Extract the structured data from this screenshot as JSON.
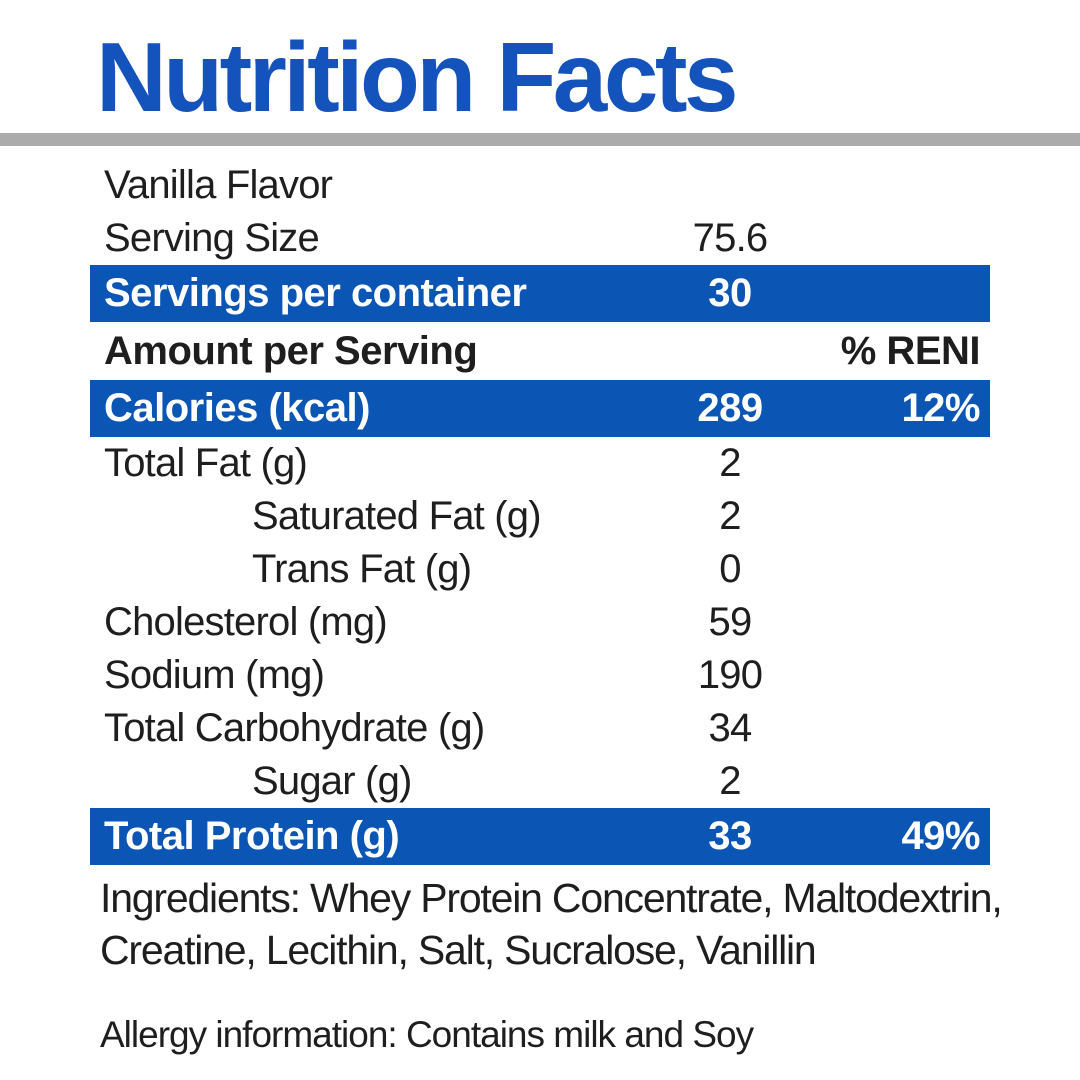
{
  "title": "Nutrition Facts",
  "colors": {
    "title_blue": "#1453BC",
    "bar_blue": "#0B55B4",
    "divider_gray": "#ABABAB",
    "text_dark": "#1E1E1E"
  },
  "table": {
    "percent_column_header": "% RENI",
    "rows": [
      {
        "label": "Vanilla Flavor",
        "value": "",
        "pct": "",
        "style": "plain"
      },
      {
        "label": "Serving Size",
        "value": "75.6",
        "pct": "",
        "style": "plain"
      },
      {
        "label": "Servings per container",
        "value": "30",
        "pct": "",
        "style": "highlight"
      },
      {
        "label": "Amount per Serving",
        "value": "",
        "pct": "% RENI",
        "style": "bold"
      },
      {
        "label": "Calories (kcal)",
        "value": "289",
        "pct": "12%",
        "style": "highlight"
      },
      {
        "label": "Total Fat (g)",
        "value": "2",
        "pct": "",
        "style": "plain"
      },
      {
        "label": "Saturated Fat (g)",
        "value": "2",
        "pct": "",
        "style": "indent"
      },
      {
        "label": "Trans Fat (g)",
        "value": "0",
        "pct": "",
        "style": "indent"
      },
      {
        "label": "Cholesterol (mg)",
        "value": "59",
        "pct": "",
        "style": "plain"
      },
      {
        "label": "Sodium (mg)",
        "value": "190",
        "pct": "",
        "style": "plain"
      },
      {
        "label": "Total Carbohydrate (g)",
        "value": "34",
        "pct": "",
        "style": "plain"
      },
      {
        "label": "Sugar (g)",
        "value": "2",
        "pct": "",
        "style": "indent"
      },
      {
        "label": "Total Protein (g)",
        "value": "33",
        "pct": "49%",
        "style": "highlight"
      }
    ]
  },
  "footnotes": {
    "ingredients_line1": "Ingredients: Whey Protein Concentrate, Maltodextrin,",
    "ingredients_line2": "Creatine, Lecithin, Salt, Sucralose, Vanillin",
    "allergy": "Allergy information: Contains milk and Soy"
  }
}
